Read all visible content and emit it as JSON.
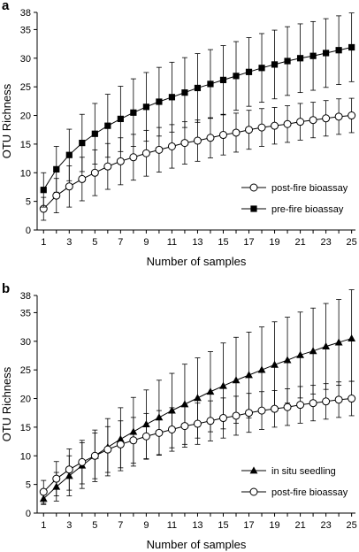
{
  "chart_data": [
    {
      "panel_label": "a",
      "type": "line",
      "xlabel": "Number of samples",
      "ylabel": "OTU Richness",
      "xlim": [
        0.5,
        25.3
      ],
      "ylim": [
        0,
        38
      ],
      "xticks": [
        1,
        3,
        5,
        7,
        9,
        11,
        13,
        15,
        17,
        19,
        21,
        23,
        25
      ],
      "yticks": [
        0,
        5,
        10,
        15,
        20,
        25,
        30,
        35,
        38
      ],
      "legend_position": "bottom-right",
      "series": [
        {
          "name": "post-fire bioassay",
          "marker": "open-circle",
          "x": [
            1,
            2,
            3,
            4,
            5,
            6,
            7,
            8,
            9,
            10,
            11,
            12,
            13,
            14,
            15,
            16,
            17,
            18,
            19,
            20,
            21,
            22,
            23,
            24,
            25
          ],
          "values": [
            3.7,
            6.0,
            7.6,
            8.9,
            10.0,
            11.1,
            12.0,
            12.7,
            13.4,
            14.0,
            14.6,
            15.2,
            15.6,
            16.1,
            16.6,
            17.0,
            17.5,
            17.9,
            18.2,
            18.5,
            18.9,
            19.2,
            19.5,
            19.8,
            20.0
          ],
          "err_low": [
            2.0,
            3.0,
            3.6,
            3.8,
            4.0,
            4.0,
            4.1,
            4.0,
            4.0,
            3.9,
            3.8,
            3.7,
            3.6,
            3.5,
            3.5,
            3.4,
            3.4,
            3.3,
            3.2,
            3.2,
            3.2,
            3.1,
            3.1,
            3.1,
            3.0
          ],
          "err_high": [
            2.0,
            3.0,
            3.6,
            3.8,
            4.0,
            4.0,
            4.1,
            4.0,
            4.0,
            3.9,
            3.8,
            3.7,
            3.6,
            3.5,
            3.5,
            3.4,
            3.4,
            3.3,
            3.2,
            3.2,
            3.2,
            3.1,
            3.1,
            3.1,
            3.0
          ]
        },
        {
          "name": "pre-fire bioassay",
          "marker": "filled-square",
          "x": [
            1,
            2,
            3,
            4,
            5,
            6,
            7,
            8,
            9,
            10,
            11,
            12,
            13,
            14,
            15,
            16,
            17,
            18,
            19,
            20,
            21,
            22,
            23,
            24,
            25
          ],
          "values": [
            7.0,
            10.6,
            13.1,
            15.2,
            16.8,
            18.2,
            19.4,
            20.5,
            21.5,
            22.4,
            23.2,
            24.0,
            24.8,
            25.5,
            26.2,
            26.9,
            27.6,
            28.3,
            28.9,
            29.5,
            30.0,
            30.4,
            30.9,
            31.4,
            31.9
          ],
          "err_low": [
            3.0,
            4.0,
            4.5,
            5.0,
            5.3,
            5.5,
            5.7,
            5.9,
            6.0,
            6.0,
            6.1,
            6.1,
            6.0,
            6.0,
            6.0,
            6.0,
            6.0,
            6.0,
            6.0,
            6.0,
            6.0,
            6.0,
            6.0,
            6.0,
            6.0
          ],
          "err_high": [
            3.0,
            4.0,
            4.5,
            5.0,
            5.3,
            5.5,
            5.7,
            5.9,
            6.0,
            6.0,
            6.1,
            6.1,
            6.0,
            6.0,
            6.0,
            6.0,
            6.0,
            6.0,
            6.0,
            6.0,
            6.0,
            6.0,
            6.0,
            6.0,
            6.0
          ]
        }
      ]
    },
    {
      "panel_label": "b",
      "type": "line",
      "xlabel": "Number of samples",
      "ylabel": "OTU Richness",
      "xlim": [
        0.5,
        25.3
      ],
      "ylim": [
        0,
        38
      ],
      "xticks": [
        1,
        3,
        5,
        7,
        9,
        11,
        13,
        15,
        17,
        19,
        21,
        23,
        25
      ],
      "yticks": [
        0,
        5,
        10,
        15,
        20,
        25,
        30,
        35,
        38
      ],
      "legend_position": "bottom-right",
      "series": [
        {
          "name": "in situ seedling",
          "marker": "filled-triangle",
          "x": [
            1,
            2,
            3,
            4,
            5,
            6,
            7,
            8,
            9,
            10,
            11,
            12,
            13,
            14,
            15,
            16,
            17,
            18,
            19,
            20,
            21,
            22,
            23,
            24,
            25
          ],
          "values": [
            2.5,
            4.6,
            6.5,
            8.3,
            10.0,
            11.5,
            12.9,
            14.2,
            15.5,
            16.7,
            17.9,
            19.0,
            20.1,
            21.2,
            22.2,
            23.2,
            24.1,
            25.0,
            25.9,
            26.7,
            27.6,
            28.3,
            29.1,
            29.8,
            30.5
          ],
          "err_low": [
            1.0,
            2.5,
            3.5,
            4.0,
            4.5,
            5.0,
            5.5,
            6.0,
            6.0,
            6.5,
            6.5,
            7.0,
            7.0,
            7.0,
            7.5,
            7.5,
            7.5,
            7.5,
            7.5,
            7.5,
            7.5,
            7.5,
            7.5,
            7.5,
            7.5
          ],
          "err_high": [
            1.0,
            2.5,
            3.5,
            4.0,
            4.5,
            5.0,
            5.5,
            6.0,
            6.0,
            6.5,
            6.5,
            7.0,
            7.0,
            7.0,
            7.5,
            7.5,
            7.5,
            7.5,
            7.5,
            7.5,
            7.5,
            7.5,
            7.5,
            7.5,
            8.5
          ]
        },
        {
          "name": "post-fire bioassay",
          "marker": "open-circle",
          "x": [
            1,
            2,
            3,
            4,
            5,
            6,
            7,
            8,
            9,
            10,
            11,
            12,
            13,
            14,
            15,
            16,
            17,
            18,
            19,
            20,
            21,
            22,
            23,
            24,
            25
          ],
          "values": [
            3.7,
            6.0,
            7.6,
            8.9,
            10.0,
            11.1,
            12.0,
            12.7,
            13.4,
            14.0,
            14.6,
            15.2,
            15.6,
            16.1,
            16.6,
            17.0,
            17.5,
            17.9,
            18.2,
            18.5,
            18.9,
            19.2,
            19.5,
            19.8,
            20.0
          ],
          "err_low": [
            2.0,
            3.0,
            3.6,
            3.8,
            4.0,
            4.0,
            4.1,
            4.0,
            4.0,
            3.9,
            3.8,
            3.7,
            3.6,
            3.5,
            3.5,
            3.4,
            3.4,
            3.3,
            3.2,
            3.2,
            3.2,
            3.1,
            3.1,
            3.1,
            3.0
          ],
          "err_high": [
            2.0,
            3.0,
            3.6,
            3.8,
            4.0,
            4.0,
            4.1,
            4.0,
            4.0,
            3.9,
            3.8,
            3.7,
            3.6,
            3.5,
            3.5,
            3.4,
            3.4,
            3.3,
            3.2,
            3.2,
            3.2,
            3.1,
            3.1,
            3.1,
            3.0
          ]
        }
      ]
    }
  ]
}
